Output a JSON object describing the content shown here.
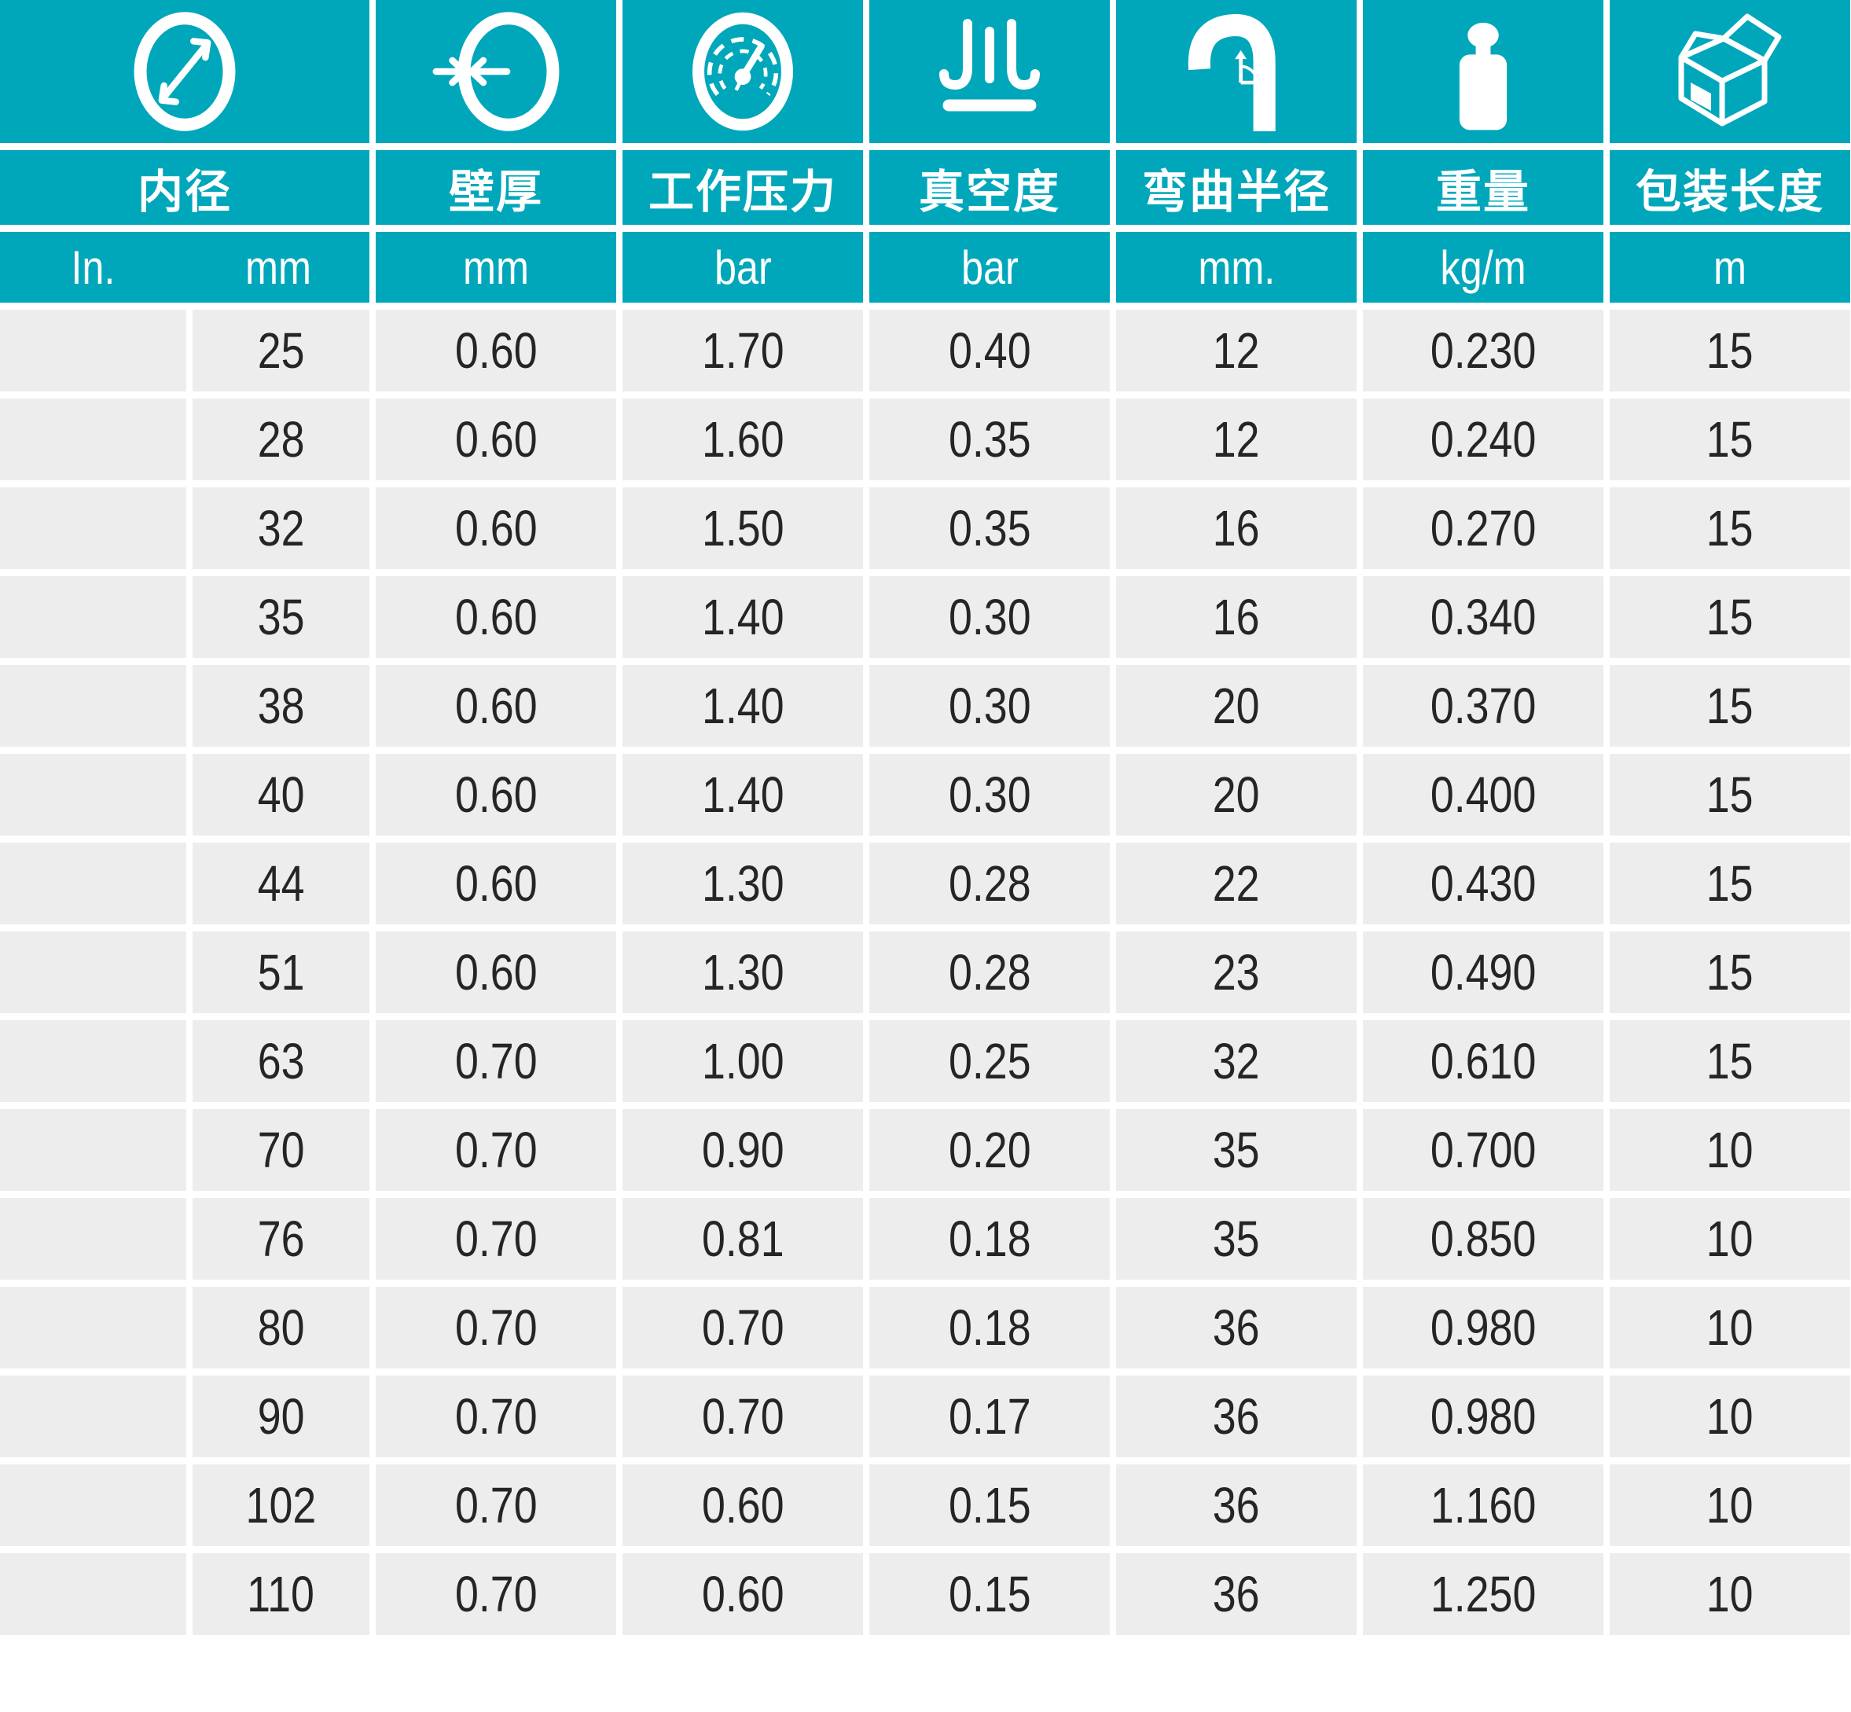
{
  "colors": {
    "teal": "#00a7ba",
    "row_background": "#ededed",
    "gap_white": "#ffffff",
    "text_dark": "#252525",
    "text_light": "#ffffff"
  },
  "table": {
    "columns": [
      {
        "icon": "inner-diameter-icon",
        "label": "内径",
        "units": [
          "In.",
          "mm"
        ]
      },
      {
        "icon": "wall-thickness-icon",
        "label": "壁厚",
        "unit": "mm"
      },
      {
        "icon": "working-pressure-icon",
        "label": "工作压力",
        "unit": "bar"
      },
      {
        "icon": "vacuum-icon",
        "label": "真空度",
        "unit": "bar"
      },
      {
        "icon": "bend-radius-icon",
        "label": "弯曲半径",
        "unit": "mm."
      },
      {
        "icon": "weight-icon",
        "label": "重量",
        "unit": "kg/m"
      },
      {
        "icon": "package-length-icon",
        "label": "包装长度",
        "unit": "m"
      }
    ],
    "rows": [
      [
        "",
        "25",
        "0.60",
        "1.70",
        "0.40",
        "12",
        "0.230",
        "15"
      ],
      [
        "",
        "28",
        "0.60",
        "1.60",
        "0.35",
        "12",
        "0.240",
        "15"
      ],
      [
        "",
        "32",
        "0.60",
        "1.50",
        "0.35",
        "16",
        "0.270",
        "15"
      ],
      [
        "",
        "35",
        "0.60",
        "1.40",
        "0.30",
        "16",
        "0.340",
        "15"
      ],
      [
        "",
        "38",
        "0.60",
        "1.40",
        "0.30",
        "20",
        "0.370",
        "15"
      ],
      [
        "",
        "40",
        "0.60",
        "1.40",
        "0.30",
        "20",
        "0.400",
        "15"
      ],
      [
        "",
        "44",
        "0.60",
        "1.30",
        "0.28",
        "22",
        "0.430",
        "15"
      ],
      [
        "",
        "51",
        "0.60",
        "1.30",
        "0.28",
        "23",
        "0.490",
        "15"
      ],
      [
        "",
        "63",
        "0.70",
        "1.00",
        "0.25",
        "32",
        "0.610",
        "15"
      ],
      [
        "",
        "70",
        "0.70",
        "0.90",
        "0.20",
        "35",
        "0.700",
        "10"
      ],
      [
        "",
        "76",
        "0.70",
        "0.81",
        "0.18",
        "35",
        "0.850",
        "10"
      ],
      [
        "",
        "80",
        "0.70",
        "0.70",
        "0.18",
        "36",
        "0.980",
        "10"
      ],
      [
        "",
        "90",
        "0.70",
        "0.70",
        "0.17",
        "36",
        "0.980",
        "10"
      ],
      [
        "",
        "102",
        "0.70",
        "0.60",
        "0.15",
        "36",
        "1.160",
        "10"
      ],
      [
        "",
        "110",
        "0.70",
        "0.60",
        "0.15",
        "36",
        "1.250",
        "10"
      ]
    ]
  }
}
